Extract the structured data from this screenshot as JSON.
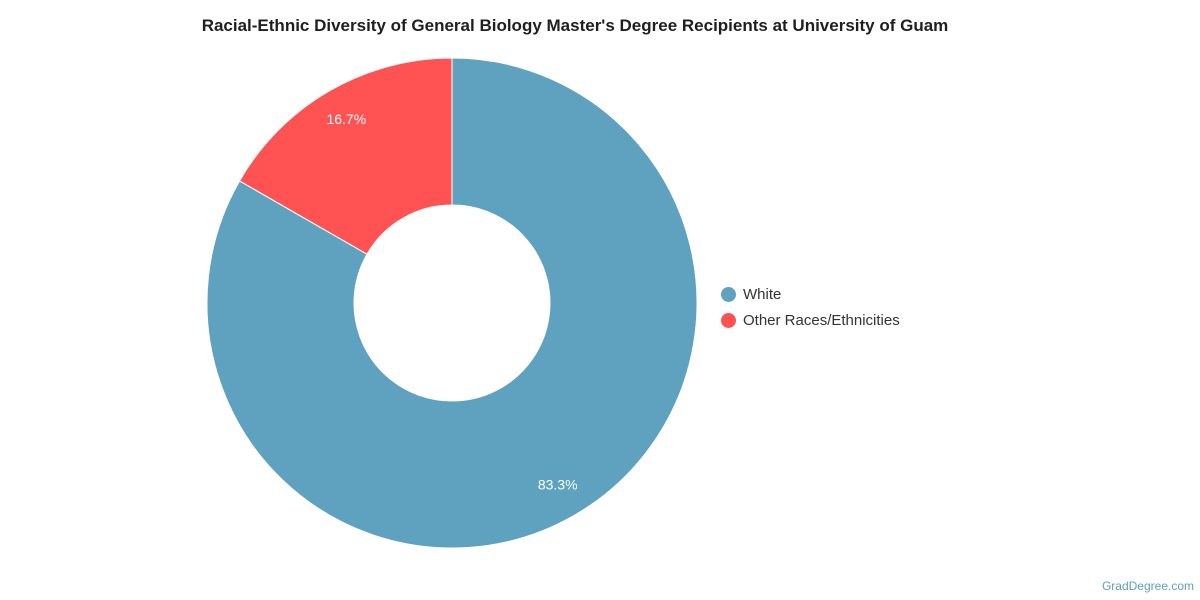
{
  "chart_data": {
    "type": "pie",
    "variant": "donut",
    "title": "Racial-Ethnic Diversity of General Biology Master's Degree Recipients at University of Guam",
    "slices": [
      {
        "name": "White",
        "value": 83.3,
        "label": "83.3%",
        "color": "#5ea2bf"
      },
      {
        "name": "Other Races/Ethnicities",
        "value": 16.7,
        "label": "16.7%",
        "color": "#ff5252"
      }
    ],
    "legend_position": "right"
  },
  "watermark": "GradDegree.com"
}
